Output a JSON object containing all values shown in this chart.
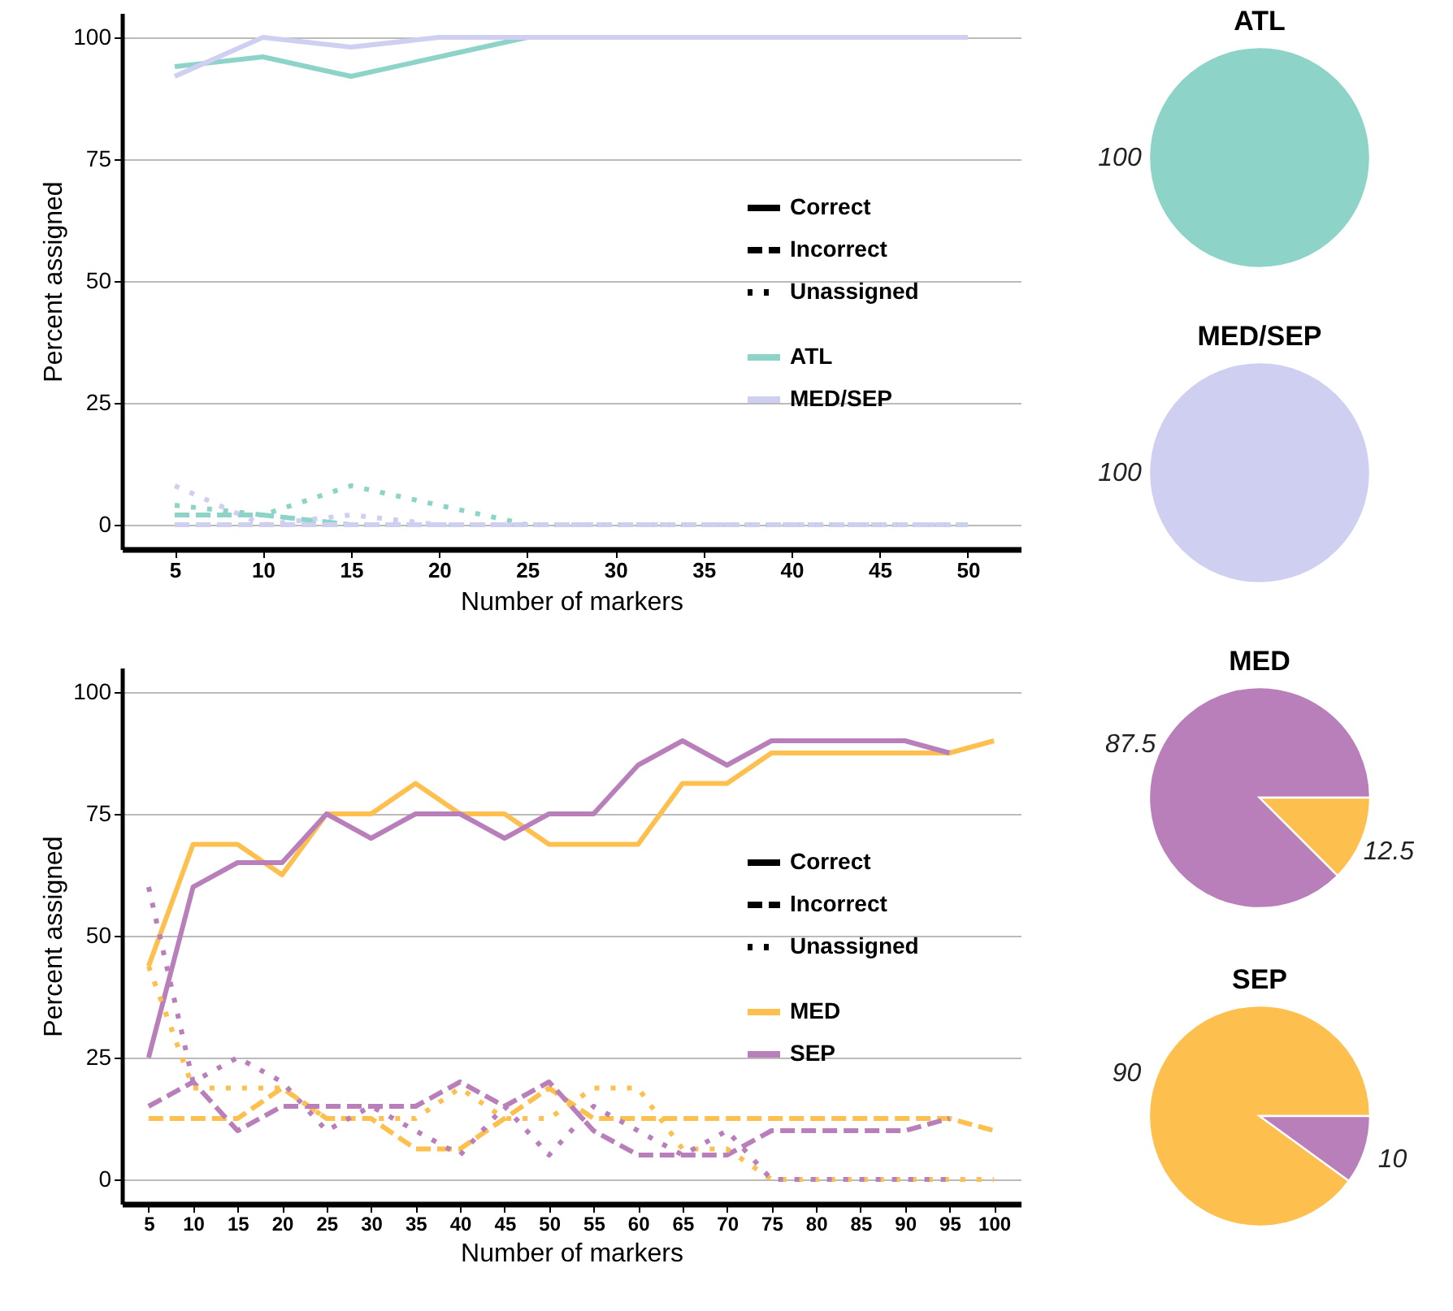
{
  "chart_data": [
    {
      "type": "line",
      "xlabel": "Number of markers",
      "ylabel": "Percent assigned",
      "x": [
        5,
        10,
        15,
        20,
        25,
        30,
        35,
        40,
        45,
        50
      ],
      "xlim": [
        2,
        53
      ],
      "xticks": [
        5,
        10,
        15,
        20,
        25,
        30,
        35,
        40,
        45,
        50
      ],
      "ylim": [
        -5,
        105
      ],
      "yticks": [
        0,
        25,
        50,
        75,
        100
      ],
      "grid": "y",
      "legend": "right",
      "annotations": [
        "Correct",
        "Incorrect",
        "Unassigned"
      ],
      "series": [
        {
          "name": "ATL",
          "color": "#8dd3c7",
          "line_style": "solid",
          "values": [
            94,
            96,
            92,
            96,
            100,
            null,
            null,
            null,
            null,
            null
          ]
        },
        {
          "name": "MED/SEP",
          "color": "#cfcff2",
          "line_style": "solid",
          "values": [
            92,
            100,
            98,
            100,
            100,
            100,
            100,
            100,
            100,
            100
          ]
        },
        {
          "color": "#8dd3c7",
          "line_style": "dashed",
          "values": [
            2,
            2,
            0,
            0,
            0,
            0,
            0,
            0,
            0,
            0
          ]
        },
        {
          "color": "#cfcff2",
          "line_style": "dashed",
          "values": [
            0,
            0,
            0,
            0,
            0,
            0,
            0,
            0,
            0,
            0
          ]
        },
        {
          "color": "#8dd3c7",
          "line_style": "dotted",
          "values": [
            4,
            2,
            8,
            4,
            0,
            0,
            0,
            0,
            0,
            0
          ]
        },
        {
          "color": "#cfcff2",
          "line_style": "dotted",
          "values": [
            8,
            0,
            2,
            0,
            0,
            0,
            0,
            0,
            0,
            0
          ]
        }
      ]
    },
    {
      "type": "pie",
      "title": "ATL",
      "categories": [
        null
      ],
      "values": [
        100
      ],
      "colors": [
        "#8dd3c7"
      ],
      "data_labels": true
    },
    {
      "type": "pie",
      "title": "MED/SEP",
      "categories": [
        null
      ],
      "values": [
        100
      ],
      "colors": [
        "#cfcff2"
      ],
      "data_labels": true
    },
    {
      "type": "line",
      "xlabel": "Number of markers",
      "ylabel": "Percent assigned",
      "x": [
        5,
        10,
        15,
        20,
        25,
        30,
        35,
        40,
        45,
        50,
        55,
        60,
        65,
        70,
        75,
        80,
        85,
        90,
        95,
        100
      ],
      "xlim": [
        2,
        103
      ],
      "xticks": [
        5,
        10,
        15,
        20,
        25,
        30,
        35,
        40,
        45,
        50,
        55,
        60,
        65,
        70,
        75,
        80,
        85,
        90,
        95,
        100
      ],
      "ylim": [
        -5,
        105
      ],
      "yticks": [
        0,
        25,
        50,
        75,
        100
      ],
      "grid": "y",
      "legend": "right",
      "annotations": [
        "Correct",
        "Incorrect",
        "Unassigned"
      ],
      "series": [
        {
          "name": "MED",
          "color": "#fdc04e",
          "line_style": "solid",
          "values": [
            43.75,
            68.75,
            68.75,
            62.5,
            75,
            75,
            81.25,
            75,
            75,
            68.75,
            68.75,
            68.75,
            81.25,
            81.25,
            87.5,
            87.5,
            87.5,
            87.5,
            87.5,
            90
          ]
        },
        {
          "name": "SEP",
          "color": "#b97fba",
          "line_style": "solid",
          "values": [
            25,
            60,
            65,
            65,
            75,
            70,
            75,
            75,
            70,
            75,
            75,
            85,
            90,
            85,
            90,
            90,
            90,
            90,
            87.5,
            null
          ]
        },
        {
          "color": "#fdc04e",
          "line_style": "dashed",
          "values": [
            12.5,
            12.5,
            12.5,
            18.75,
            12.5,
            12.5,
            6.25,
            6.25,
            12.5,
            18.75,
            12.5,
            12.5,
            12.5,
            12.5,
            12.5,
            12.5,
            12.5,
            12.5,
            12.5,
            10
          ]
        },
        {
          "color": "#b97fba",
          "line_style": "dashed",
          "values": [
            15,
            20,
            10,
            15,
            15,
            15,
            15,
            20,
            15,
            20,
            10,
            5,
            5,
            5,
            10,
            10,
            10,
            10,
            12.5,
            null
          ]
        },
        {
          "color": "#fdc04e",
          "line_style": "dotted",
          "values": [
            43.75,
            18.75,
            18.75,
            18.75,
            12.5,
            12.5,
            12.5,
            18.75,
            12.5,
            12.5,
            18.75,
            18.75,
            6.25,
            6.25,
            0,
            0,
            0,
            0,
            0,
            0
          ]
        },
        {
          "color": "#b97fba",
          "line_style": "dotted",
          "values": [
            60,
            20,
            25,
            20,
            10,
            15,
            10,
            5,
            15,
            5,
            15,
            10,
            5,
            10,
            0,
            0,
            0,
            0,
            0,
            null
          ]
        }
      ]
    },
    {
      "type": "pie",
      "title": "MED",
      "categories": [
        null,
        null
      ],
      "values": [
        87.5,
        12.5
      ],
      "colors": [
        "#b97fba",
        "#fdc04e"
      ],
      "data_labels": true
    },
    {
      "type": "pie",
      "title": "SEP",
      "categories": [
        null,
        null
      ],
      "values": [
        90,
        10
      ],
      "colors": [
        "#fdc04e",
        "#b97fba"
      ],
      "data_labels": true
    }
  ]
}
